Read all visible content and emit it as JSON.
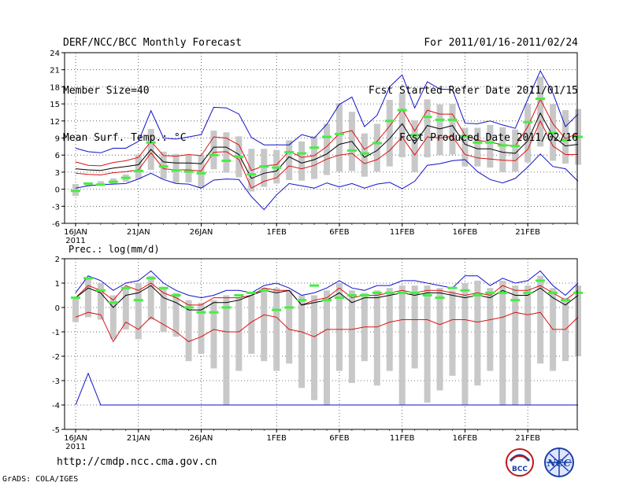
{
  "header": {
    "title": "DERF/NCC/BCC Monthly Forecast",
    "member_size": "Member Size=40",
    "variable": "Mean Surf. Temp.: °C",
    "period": "For 2011/01/16-2011/02/24",
    "started": "Fcst Started Refer Date 2011/01/15",
    "produced": "Fcst Produced Date 2011/02/16"
  },
  "footer": {
    "url": "http://cmdp.ncc.cma.gov.cn",
    "grads": "GrADS: COLA/IGES",
    "logo_bcc_text": "BCC",
    "logo_ncc_text": "NCC"
  },
  "colors": {
    "max": "#1010cc",
    "min": "#1010cc",
    "upper": "#dd1111",
    "lower": "#dd1111",
    "mean": "#000000",
    "box": "#c8c8c8",
    "obs": "#44ee44",
    "grid": "#444444"
  },
  "chart_data": [
    {
      "type": "line",
      "title": "Mean Surf. Temp.: °C",
      "xlabel": "",
      "ylabel": "",
      "x_start": "2011-01-16",
      "days": 40,
      "x_ticks": [
        {
          "day": 0,
          "label": "16JAN",
          "sub": "2011"
        },
        {
          "day": 5,
          "label": "21JAN"
        },
        {
          "day": 10,
          "label": "26JAN"
        },
        {
          "day": 16,
          "label": "1FEB"
        },
        {
          "day": 21,
          "label": "6FEB"
        },
        {
          "day": 26,
          "label": "11FEB"
        },
        {
          "day": 31,
          "label": "16FEB"
        },
        {
          "day": 36,
          "label": "21FEB"
        }
      ],
      "ylim": [
        -6,
        24
      ],
      "y_ticks": [
        -6,
        -3,
        0,
        3,
        6,
        9,
        12,
        15,
        18,
        21,
        24
      ],
      "grid": true,
      "series": [
        {
          "name": "max",
          "values": [
            7.2,
            6.6,
            6.4,
            7.2,
            7.2,
            8.4,
            13.8,
            9.0,
            8.8,
            9.2,
            9.6,
            14.4,
            14.3,
            13.2,
            9.1,
            7.8,
            7.8,
            7.8,
            9.6,
            9.0,
            11.4,
            14.9,
            16.2,
            11.0,
            13.0,
            18.0,
            20.1,
            14.3,
            18.9,
            17.6,
            17.5,
            11.6,
            11.5,
            12.0,
            11.3,
            10.7,
            15.8,
            20.8,
            16.9,
            11.0,
            13.2
          ]
        },
        {
          "name": "upper",
          "values": [
            4.8,
            4.2,
            4.1,
            4.7,
            5.0,
            5.6,
            8.4,
            5.9,
            5.8,
            6.1,
            5.9,
            9.2,
            9.0,
            7.8,
            3.3,
            4.1,
            4.3,
            6.7,
            5.6,
            5.9,
            7.5,
            9.8,
            10.3,
            7.0,
            8.4,
            11.1,
            14.1,
            10.2,
            13.9,
            13.2,
            13.2,
            9.5,
            8.6,
            8.3,
            7.8,
            7.6,
            11.0,
            15.8,
            11.5,
            8.9,
            9.8
          ]
        },
        {
          "name": "mean",
          "values": [
            3.6,
            3.4,
            3.3,
            3.7,
            4.0,
            4.3,
            7.0,
            4.8,
            4.6,
            4.6,
            4.5,
            7.4,
            7.4,
            6.1,
            1.9,
            2.8,
            3.2,
            5.7,
            4.6,
            5.2,
            6.2,
            7.9,
            8.4,
            5.6,
            6.8,
            8.9,
            11.5,
            8.0,
            11.2,
            10.6,
            11.2,
            7.9,
            7.1,
            7.1,
            6.5,
            6.3,
            8.5,
            13.4,
            9.3,
            7.6,
            7.9
          ]
        },
        {
          "name": "lower",
          "values": [
            2.8,
            2.6,
            2.5,
            2.9,
            3.1,
            3.4,
            6.4,
            3.6,
            3.4,
            3.4,
            3.2,
            6.5,
            6.6,
            5.2,
            0.2,
            1.4,
            2.0,
            4.1,
            3.6,
            4.2,
            5.3,
            6.0,
            6.3,
            4.5,
            5.2,
            6.8,
            9.2,
            6.0,
            9.2,
            9.0,
            9.3,
            6.1,
            5.5,
            5.3,
            5.1,
            5.0,
            7.0,
            12.0,
            7.6,
            6.1,
            6.1
          ]
        },
        {
          "name": "min",
          "values": [
            0.2,
            0.6,
            0.8,
            0.9,
            1.0,
            1.8,
            2.8,
            1.7,
            1.0,
            0.9,
            0.2,
            1.6,
            1.8,
            1.7,
            -1.3,
            -3.6,
            -1.0,
            1.0,
            0.6,
            0.2,
            1.1,
            0.4,
            1.0,
            0.2,
            0.9,
            1.2,
            0.1,
            1.4,
            4.2,
            4.5,
            5.0,
            5.2,
            3.1,
            1.7,
            1.1,
            1.9,
            3.9,
            6.2,
            4.0,
            3.6,
            1.4
          ]
        }
      ],
      "boxes": {
        "low": [
          -1.2,
          0.6,
          0.6,
          0.9,
          1.3,
          1.8,
          3.4,
          1.8,
          1.1,
          1.2,
          0.2,
          3.5,
          2.9,
          2.1,
          -0.4,
          0.4,
          1.0,
          1.6,
          1.5,
          1.8,
          2.5,
          3.1,
          3.2,
          2.2,
          3.1,
          4.0,
          5.6,
          3.0,
          5.6,
          6.0,
          6.1,
          4.0,
          4.0,
          3.8,
          3.0,
          3.1,
          4.7,
          7.5,
          5.0,
          4.5,
          4.3
        ],
        "high": [
          0.9,
          1.0,
          1.4,
          1.9,
          2.6,
          6.1,
          10.6,
          6.6,
          6.2,
          6.1,
          6.0,
          10.3,
          10.0,
          9.3,
          7.1,
          7.1,
          6.9,
          8.6,
          8.4,
          9.3,
          11.5,
          15.1,
          13.6,
          9.8,
          11.5,
          15.7,
          16.9,
          12.1,
          15.8,
          14.9,
          15.0,
          10.8,
          10.8,
          11.3,
          10.9,
          10.5,
          15.0,
          19.8,
          15.0,
          13.9,
          14.1
        ]
      },
      "observed": [
        -0.3,
        1.0,
        0.8,
        1.3,
        2.0,
        3.2,
        8.2,
        4.0,
        3.3,
        3.1,
        2.8,
        6.0,
        5.0,
        5.7,
        2.6,
        4.0,
        3.8,
        6.5,
        6.3,
        7.3,
        9.2,
        9.7,
        6.8,
        6.3,
        8.1,
        12.0,
        13.9,
        9.5,
        12.7,
        12.2,
        12.2,
        9.3,
        8.2,
        8.2,
        7.7,
        7.6,
        11.8,
        15.9,
        9.9,
        8.6,
        9.2
      ]
    },
    {
      "type": "line",
      "title": "Prec.: log(mm/d)",
      "xlabel": "",
      "ylabel": "",
      "x_start": "2011-01-16",
      "days": 40,
      "x_ticks": [
        {
          "day": 0,
          "label": "16JAN",
          "sub": "2011"
        },
        {
          "day": 5,
          "label": "21JAN"
        },
        {
          "day": 10,
          "label": "26JAN"
        },
        {
          "day": 16,
          "label": "1FEB"
        },
        {
          "day": 21,
          "label": "6FEB"
        },
        {
          "day": 26,
          "label": "11FEB"
        },
        {
          "day": 31,
          "label": "16FEB"
        },
        {
          "day": 36,
          "label": "21FEB"
        }
      ],
      "ylim": [
        -5,
        2
      ],
      "y_ticks": [
        -5,
        -4,
        -3,
        -2,
        -1,
        0,
        1,
        2
      ],
      "grid": true,
      "series": [
        {
          "name": "max",
          "values": [
            0.6,
            1.3,
            1.1,
            0.7,
            1.0,
            1.1,
            1.5,
            1.0,
            0.7,
            0.5,
            0.4,
            0.5,
            0.7,
            0.7,
            0.6,
            0.9,
            1.0,
            0.8,
            0.5,
            0.6,
            0.8,
            1.1,
            0.8,
            0.7,
            0.9,
            0.9,
            1.1,
            1.1,
            1.0,
            0.9,
            0.8,
            1.3,
            1.3,
            0.9,
            1.2,
            1.0,
            1.1,
            1.5,
            0.9,
            0.5,
            1.0
          ]
        },
        {
          "name": "upper",
          "values": [
            0.4,
            0.9,
            0.7,
            0.3,
            0.9,
            0.7,
            1.0,
            0.6,
            0.4,
            0.1,
            0.1,
            0.4,
            0.4,
            0.4,
            0.5,
            0.8,
            0.7,
            0.7,
            0.1,
            0.3,
            0.4,
            0.8,
            0.4,
            0.5,
            0.5,
            0.6,
            0.7,
            0.6,
            0.7,
            0.7,
            0.6,
            0.5,
            0.6,
            0.5,
            0.9,
            0.7,
            0.7,
            0.9,
            0.6,
            0.3,
            0.7
          ]
        },
        {
          "name": "mean",
          "values": [
            0.4,
            0.8,
            0.6,
            0.0,
            0.5,
            0.6,
            0.9,
            0.4,
            0.2,
            -0.1,
            -0.1,
            0.2,
            0.2,
            0.3,
            0.5,
            0.7,
            0.6,
            0.7,
            0.1,
            0.2,
            0.3,
            0.6,
            0.2,
            0.4,
            0.4,
            0.5,
            0.6,
            0.5,
            0.6,
            0.6,
            0.5,
            0.4,
            0.5,
            0.4,
            0.7,
            0.5,
            0.5,
            0.8,
            0.4,
            0.1,
            0.5
          ]
        },
        {
          "name": "lower",
          "values": [
            -0.4,
            -0.2,
            -0.3,
            -1.4,
            -0.6,
            -0.9,
            -0.4,
            -0.7,
            -1.0,
            -1.4,
            -1.2,
            -0.9,
            -1.0,
            -1.0,
            -0.6,
            -0.3,
            -0.4,
            -0.9,
            -1.0,
            -1.2,
            -0.9,
            -0.9,
            -0.9,
            -0.8,
            -0.8,
            -0.6,
            -0.5,
            -0.5,
            -0.5,
            -0.7,
            -0.5,
            -0.5,
            -0.6,
            -0.5,
            -0.4,
            -0.2,
            -0.3,
            -0.2,
            -0.9,
            -0.9,
            -0.4
          ]
        },
        {
          "name": "min",
          "values": [
            -4.0,
            -2.7,
            -4.0,
            -4.0,
            -4.0,
            -4.0,
            -4.0,
            -4.0,
            -4.0,
            -4.0,
            -4.0,
            -4.0,
            -4.0,
            -4.0,
            -4.0,
            -4.0,
            -4.0,
            -4.0,
            -4.0,
            -4.0,
            -4.0,
            -4.0,
            -4.0,
            -4.0,
            -4.0,
            -4.0,
            -4.0,
            -4.0,
            -4.0,
            -4.0,
            -4.0,
            -4.0,
            -4.0,
            -4.0,
            -4.0,
            -4.0,
            -4.0,
            -4.0,
            -4.0,
            -4.0,
            -4.0
          ]
        }
      ],
      "boxes": {
        "low": [
          -0.6,
          -0.4,
          -0.5,
          -1.3,
          -0.9,
          -1.3,
          -0.5,
          -1.0,
          -1.2,
          -2.2,
          -1.9,
          -2.5,
          -4.0,
          -2.6,
          -1.9,
          -2.2,
          -2.6,
          -2.3,
          -3.3,
          -3.8,
          -4.0,
          -2.6,
          -3.1,
          -2.2,
          -3.2,
          -2.6,
          -4.0,
          -2.5,
          -3.9,
          -3.4,
          -2.8,
          -4.0,
          -3.2,
          -2.6,
          -4.0,
          -4.0,
          -4.0,
          -2.3,
          -2.6,
          -2.2,
          -2.0
        ],
        "high": [
          0.4,
          1.2,
          1.0,
          0.5,
          0.8,
          1.0,
          1.3,
          0.8,
          0.6,
          0.3,
          0.2,
          0.3,
          0.5,
          0.4,
          0.5,
          0.8,
          0.8,
          0.7,
          0.5,
          0.5,
          0.7,
          1.0,
          0.7,
          0.6,
          0.7,
          0.8,
          0.9,
          0.9,
          0.9,
          0.8,
          0.7,
          1.0,
          1.1,
          0.8,
          1.1,
          0.9,
          0.9,
          1.3,
          0.8,
          0.4,
          0.9
        ]
      },
      "observed": [
        0.4,
        1.2,
        0.7,
        0.2,
        0.8,
        0.3,
        1.2,
        0.8,
        0.5,
        0.0,
        -0.2,
        -0.2,
        0.0,
        0.5,
        0.6,
        0.7,
        -0.1,
        0.0,
        0.3,
        0.9,
        0.3,
        0.4,
        0.5,
        0.5,
        0.6,
        0.6,
        0.6,
        0.6,
        0.5,
        0.4,
        0.8,
        0.7,
        0.5,
        0.6,
        0.6,
        0.3,
        0.6,
        1.1,
        0.6,
        0.3,
        0.6
      ]
    }
  ]
}
